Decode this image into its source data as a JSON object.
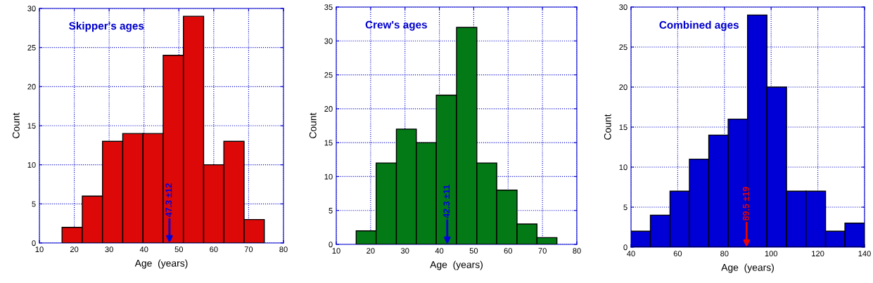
{
  "chart_data": [
    {
      "type": "histogram",
      "title": "Skipper's ages",
      "xlabel": "Age  (years)",
      "ylabel": "Count",
      "color": "#dd0808",
      "bins": [
        16.5,
        22.3,
        28.1,
        33.9,
        39.7,
        45.5,
        51.3,
        57.1,
        62.9,
        68.7,
        74.5
      ],
      "values": [
        2,
        6,
        13,
        14,
        14,
        24,
        29,
        10,
        13,
        3
      ],
      "xlim": [
        10,
        80
      ],
      "xticks": [
        10,
        20,
        30,
        40,
        50,
        60,
        70,
        80
      ],
      "ylim": [
        0,
        30
      ],
      "yticks": [
        0,
        5,
        10,
        15,
        20,
        25,
        30
      ],
      "grid": true,
      "annotations": [
        {
          "text": "47.3 ±12",
          "x": 47.3,
          "y": 0
        }
      ]
    },
    {
      "type": "histogram",
      "title": "Crew's ages",
      "xlabel": "Age  (years)",
      "ylabel": "Count",
      "color": "#037a15",
      "bins": [
        15.8,
        21.6,
        27.5,
        33.3,
        39.1,
        45.0,
        50.9,
        56.7,
        62.6,
        68.4,
        74.2
      ],
      "values": [
        2,
        12,
        17,
        15,
        22,
        32,
        12,
        8,
        3,
        1
      ],
      "xlim": [
        10,
        80
      ],
      "xticks": [
        10,
        20,
        30,
        40,
        50,
        60,
        70,
        80
      ],
      "ylim": [
        0,
        35
      ],
      "yticks": [
        0,
        5,
        10,
        15,
        20,
        25,
        30,
        35
      ],
      "grid": true,
      "annotations": [
        {
          "text": "42.3 ±11",
          "x": 42.3,
          "y": 0
        }
      ]
    },
    {
      "type": "histogram",
      "title": "Combined ages",
      "xlabel": "Age  (years)",
      "ylabel": "Count",
      "color": "#0000d6",
      "bins": [
        40,
        48.3,
        56.7,
        65,
        73.3,
        81.6,
        89.9,
        98.2,
        106.6,
        114.9,
        123.3,
        131.6,
        140
      ],
      "values": [
        2,
        4,
        7,
        11,
        14,
        16,
        29,
        20,
        7,
        7,
        2,
        3
      ],
      "xlim": [
        40,
        140
      ],
      "xticks": [
        40,
        60,
        80,
        100,
        120,
        140
      ],
      "ylim": [
        0,
        30
      ],
      "yticks": [
        0,
        5,
        10,
        15,
        20,
        25,
        30
      ],
      "grid": true,
      "annotations": [
        {
          "text": "89.5 ±19",
          "x": 89.5,
          "y": 0
        }
      ]
    }
  ]
}
